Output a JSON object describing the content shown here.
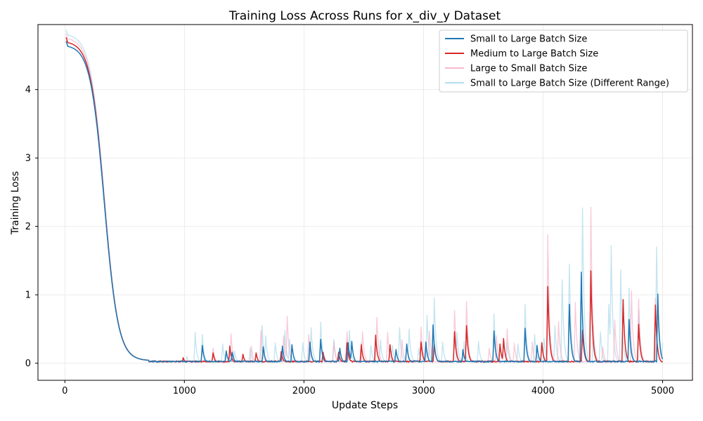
{
  "chart_data": {
    "type": "line",
    "title": "Training Loss Across Runs for x_div_y Dataset",
    "xlabel": "Update Steps",
    "ylabel": "Training Loss",
    "xlim": [
      -225,
      5250
    ],
    "ylim": [
      -0.25,
      4.95
    ],
    "xticks": [
      0,
      1000,
      2000,
      3000,
      4000,
      5000
    ],
    "yticks": [
      0,
      1,
      2,
      3,
      4
    ],
    "grid": true,
    "legend_position": "top-right",
    "series": [
      {
        "name": "Small to Large Batch Size",
        "color": "#1f77b4",
        "opacity": 1.0,
        "spike_steps": [
          1150,
          1350,
          1400,
          1660,
          1820,
          1900,
          2050,
          2140,
          2300,
          2370,
          2400,
          2770,
          2860,
          3020,
          3080,
          3330,
          3590,
          3850,
          3950,
          4220,
          4320,
          4720,
          4960
        ],
        "spike_heights": [
          0.26,
          0.18,
          0.16,
          0.24,
          0.25,
          0.27,
          0.31,
          0.35,
          0.22,
          0.3,
          0.32,
          0.2,
          0.28,
          0.31,
          0.56,
          0.2,
          0.47,
          0.51,
          0.26,
          0.86,
          1.33,
          0.64,
          1.01
        ]
      },
      {
        "name": "Medium to Large Batch Size",
        "color": "#d62728",
        "opacity": 1.0,
        "spike_steps": [
          990,
          1240,
          1380,
          1490,
          1600,
          1810,
          2160,
          2290,
          2360,
          2480,
          2600,
          2720,
          2980,
          3090,
          3260,
          3360,
          3640,
          3670,
          3990,
          4040,
          4330,
          4400,
          4670,
          4800,
          4940
        ],
        "spike_heights": [
          0.08,
          0.15,
          0.25,
          0.13,
          0.15,
          0.17,
          0.16,
          0.16,
          0.3,
          0.27,
          0.41,
          0.27,
          0.31,
          0.28,
          0.46,
          0.55,
          0.28,
          0.36,
          0.3,
          1.12,
          0.48,
          1.35,
          0.93,
          0.57,
          0.85
        ]
      },
      {
        "name": "Large to Small Batch Size",
        "color": "#f7a8c0",
        "opacity": 0.6,
        "spike_steps": [
          1240,
          1390,
          1560,
          1640,
          1830,
          1860,
          2040,
          2250,
          2360,
          2490,
          2610,
          2700,
          2820,
          2980,
          3050,
          3260,
          3360,
          3550,
          3610,
          3700,
          3760,
          3910,
          4040,
          4130,
          4270,
          4400,
          4500,
          4600,
          4740,
          4800,
          4940
        ],
        "spike_heights": [
          0.22,
          0.43,
          0.25,
          0.48,
          0.4,
          0.69,
          0.42,
          0.31,
          0.46,
          0.46,
          0.67,
          0.45,
          0.34,
          0.53,
          0.47,
          0.77,
          0.9,
          0.22,
          0.4,
          0.5,
          0.29,
          0.31,
          1.88,
          0.61,
          0.89,
          2.28,
          0.24,
          0.63,
          1.06,
          0.94,
          0.95
        ]
      },
      {
        "name": "Small to Large Batch Size (Different Range)",
        "color": "#9dd4e8",
        "opacity": 0.6,
        "spike_steps": [
          1020,
          1090,
          1150,
          1320,
          1420,
          1550,
          1650,
          1680,
          1760,
          1840,
          1880,
          1990,
          2060,
          2140,
          2250,
          2380,
          2480,
          2560,
          2640,
          2740,
          2800,
          2880,
          2960,
          3030,
          3090,
          3160,
          3280,
          3340,
          3460,
          3590,
          3700,
          3790,
          3850,
          3930,
          4010,
          4100,
          4160,
          4220,
          4330,
          4420,
          4480,
          4550,
          4570,
          4650,
          4720,
          4800,
          4950,
          5000
        ],
        "spike_heights": [
          0.1,
          0.45,
          0.42,
          0.28,
          0.18,
          0.22,
          0.55,
          0.4,
          0.3,
          0.48,
          0.35,
          0.3,
          0.52,
          0.6,
          0.35,
          0.48,
          0.3,
          0.26,
          0.34,
          0.26,
          0.52,
          0.5,
          0.22,
          0.7,
          0.95,
          0.31,
          0.45,
          0.32,
          0.32,
          0.72,
          0.3,
          0.28,
          0.86,
          0.42,
          0.36,
          0.55,
          1.22,
          1.45,
          2.27,
          0.55,
          0.46,
          0.86,
          1.72,
          1.36,
          1.1,
          0.78,
          1.7,
          0.3
        ]
      }
    ]
  }
}
